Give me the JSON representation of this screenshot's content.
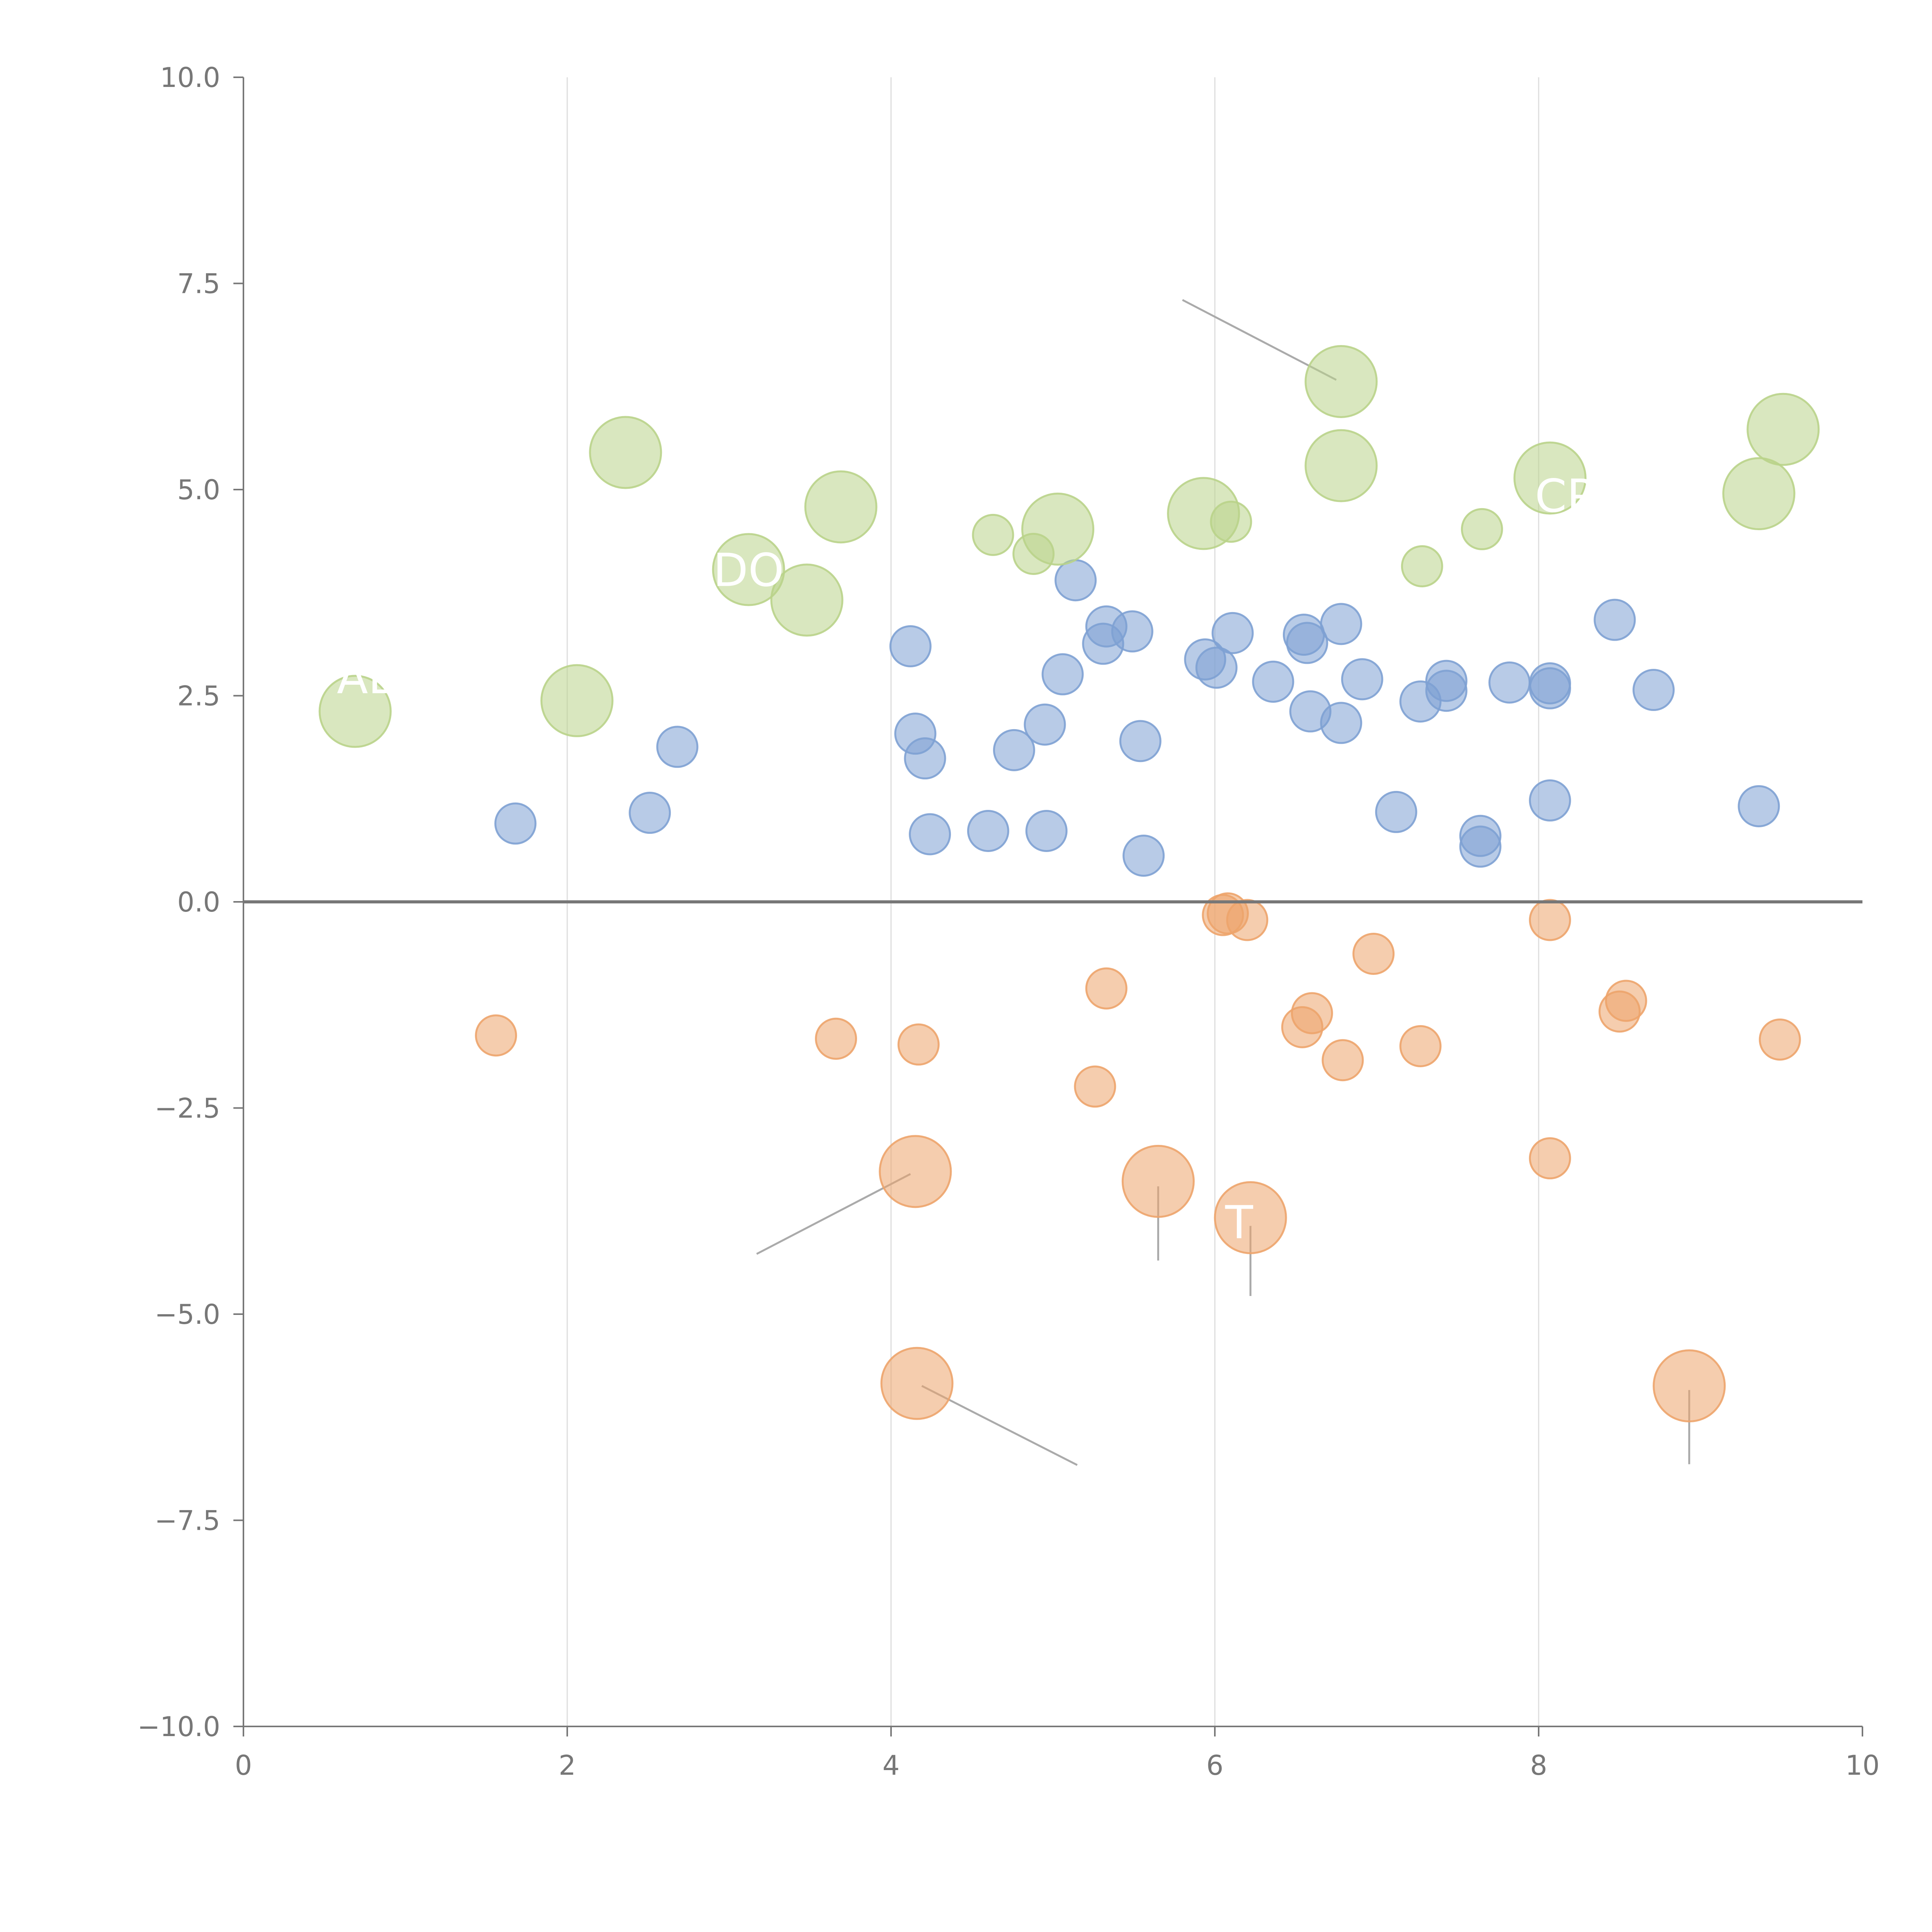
{
  "chart_data": {
    "type": "scatter",
    "title": "",
    "xlabel": "",
    "ylabel": "",
    "xlim": [
      0,
      10
    ],
    "ylim": [
      -10,
      10
    ],
    "x_ticks": [
      "0",
      "2",
      "4",
      "6",
      "8",
      "10"
    ],
    "y_ticks": [
      "−10.0",
      "−7.5",
      "−5.0",
      "−2.5",
      "0.0",
      "2.5",
      "5.0",
      "7.5",
      "10.0"
    ],
    "grid": "vertical",
    "zero_line": true,
    "colors": {
      "blue": "#7ea1d3",
      "orange": "#eda46b",
      "green": "#b9d38a",
      "leader": "#aaaaaa",
      "axis": "#777777",
      "grid": "#dddddd"
    },
    "series": [
      {
        "name": "blue",
        "color": "#7ea1d3",
        "points": [
          {
            "x": 1.68,
            "y": 0.95,
            "s": 1
          },
          {
            "x": 2.51,
            "y": 1.08,
            "s": 1
          },
          {
            "x": 2.68,
            "y": 1.88,
            "s": 1
          },
          {
            "x": 4.12,
            "y": 3.1,
            "s": 1
          },
          {
            "x": 4.15,
            "y": 2.04,
            "s": 1
          },
          {
            "x": 4.21,
            "y": 1.74,
            "s": 1
          },
          {
            "x": 4.24,
            "y": 0.82,
            "s": 1
          },
          {
            "x": 4.6,
            "y": 0.86,
            "s": 1
          },
          {
            "x": 4.76,
            "y": 1.84,
            "s": 1
          },
          {
            "x": 4.95,
            "y": 2.15,
            "s": 1
          },
          {
            "x": 4.96,
            "y": 0.86,
            "s": 1
          },
          {
            "x": 5.06,
            "y": 2.76,
            "s": 1
          },
          {
            "x": 5.14,
            "y": 3.9,
            "s": 1
          },
          {
            "x": 5.31,
            "y": 3.13,
            "s": 1
          },
          {
            "x": 5.33,
            "y": 3.34,
            "s": 1
          },
          {
            "x": 5.49,
            "y": 3.28,
            "s": 1
          },
          {
            "x": 5.54,
            "y": 1.95,
            "s": 1
          },
          {
            "x": 5.56,
            "y": 0.56,
            "s": 1
          },
          {
            "x": 5.94,
            "y": 2.94,
            "s": 1
          },
          {
            "x": 6.01,
            "y": 2.84,
            "s": 1
          },
          {
            "x": 6.11,
            "y": 3.26,
            "s": 1
          },
          {
            "x": 6.36,
            "y": 2.67,
            "s": 1
          },
          {
            "x": 6.55,
            "y": 3.24,
            "s": 1
          },
          {
            "x": 6.57,
            "y": 3.14,
            "s": 1
          },
          {
            "x": 6.59,
            "y": 2.31,
            "s": 1
          },
          {
            "x": 6.78,
            "y": 3.37,
            "s": 1
          },
          {
            "x": 6.78,
            "y": 2.17,
            "s": 1
          },
          {
            "x": 6.91,
            "y": 2.7,
            "s": 1
          },
          {
            "x": 7.12,
            "y": 1.09,
            "s": 1
          },
          {
            "x": 7.27,
            "y": 2.43,
            "s": 1
          },
          {
            "x": 7.43,
            "y": 2.68,
            "s": 1
          },
          {
            "x": 7.43,
            "y": 2.56,
            "s": 1
          },
          {
            "x": 7.64,
            "y": 0.8,
            "s": 1
          },
          {
            "x": 7.64,
            "y": 0.67,
            "s": 1
          },
          {
            "x": 7.82,
            "y": 2.66,
            "s": 1
          },
          {
            "x": 8.07,
            "y": 2.65,
            "s": 1
          },
          {
            "x": 8.07,
            "y": 2.59,
            "s": 1
          },
          {
            "x": 8.07,
            "y": 1.23,
            "s": 1
          },
          {
            "x": 8.47,
            "y": 3.42,
            "s": 1
          },
          {
            "x": 8.71,
            "y": 2.57,
            "s": 1
          },
          {
            "x": 9.36,
            "y": 1.16,
            "s": 1
          }
        ]
      },
      {
        "name": "orange",
        "color": "#eda46b",
        "points": [
          {
            "x": 1.56,
            "y": -1.62,
            "s": 1
          },
          {
            "x": 3.66,
            "y": -1.66,
            "s": 1
          },
          {
            "x": 4.17,
            "y": -1.73,
            "s": 1
          },
          {
            "x": 5.26,
            "y": -2.24,
            "s": 1
          },
          {
            "x": 5.33,
            "y": -1.05,
            "s": 1
          },
          {
            "x": 6.05,
            "y": -0.16,
            "s": 1
          },
          {
            "x": 6.08,
            "y": -0.14,
            "s": 1
          },
          {
            "x": 6.2,
            "y": -0.22,
            "s": 1
          },
          {
            "x": 6.54,
            "y": -1.52,
            "s": 1
          },
          {
            "x": 6.6,
            "y": -1.35,
            "s": 1
          },
          {
            "x": 6.79,
            "y": -1.92,
            "s": 1
          },
          {
            "x": 6.98,
            "y": -0.63,
            "s": 1
          },
          {
            "x": 7.27,
            "y": -1.75,
            "s": 1
          },
          {
            "x": 8.07,
            "y": -0.22,
            "s": 1
          },
          {
            "x": 8.07,
            "y": -3.11,
            "s": 1
          },
          {
            "x": 8.5,
            "y": -1.33,
            "s": 1
          },
          {
            "x": 8.54,
            "y": -1.2,
            "s": 1
          },
          {
            "x": 9.49,
            "y": -1.67,
            "s": 1
          },
          {
            "x": 4.15,
            "y": -3.27,
            "s": 2
          },
          {
            "x": 5.65,
            "y": -3.39,
            "s": 2
          },
          {
            "x": 6.22,
            "y": -3.83,
            "s": 2
          },
          {
            "x": 4.16,
            "y": -5.84,
            "s": 2
          },
          {
            "x": 8.93,
            "y": -5.87,
            "s": 2
          }
        ]
      },
      {
        "name": "green",
        "color": "#b9d38a",
        "points": [
          {
            "x": 4.63,
            "y": 4.45,
            "s": 1
          },
          {
            "x": 4.88,
            "y": 4.22,
            "s": 1
          },
          {
            "x": 6.1,
            "y": 4.61,
            "s": 1
          },
          {
            "x": 7.28,
            "y": 4.07,
            "s": 1
          },
          {
            "x": 7.65,
            "y": 4.52,
            "s": 1
          },
          {
            "x": 0.69,
            "y": 2.31,
            "s": 2
          },
          {
            "x": 2.06,
            "y": 2.44,
            "s": 2
          },
          {
            "x": 2.36,
            "y": 5.45,
            "s": 2
          },
          {
            "x": 3.12,
            "y": 4.03,
            "s": 2
          },
          {
            "x": 3.48,
            "y": 3.66,
            "s": 2
          },
          {
            "x": 3.69,
            "y": 4.79,
            "s": 2
          },
          {
            "x": 5.03,
            "y": 4.52,
            "s": 2
          },
          {
            "x": 5.93,
            "y": 4.71,
            "s": 2
          },
          {
            "x": 6.78,
            "y": 6.31,
            "s": 2
          },
          {
            "x": 6.78,
            "y": 5.29,
            "s": 2
          },
          {
            "x": 8.07,
            "y": 5.14,
            "s": 2
          },
          {
            "x": 9.36,
            "y": 4.95,
            "s": 2
          },
          {
            "x": 9.51,
            "y": 5.73,
            "s": 2
          }
        ]
      }
    ],
    "leader_lines": [
      {
        "x1": 6.75,
        "y1": 6.33,
        "x2": 5.8,
        "y2": 7.3
      },
      {
        "x1": 4.12,
        "y1": -3.3,
        "x2": 3.17,
        "y2": -4.27
      },
      {
        "x1": 5.65,
        "y1": -3.45,
        "x2": 5.65,
        "y2": -4.35
      },
      {
        "x1": 6.22,
        "y1": -3.93,
        "x2": 6.22,
        "y2": -4.78
      },
      {
        "x1": 4.19,
        "y1": -5.87,
        "x2": 5.15,
        "y2": -6.83
      },
      {
        "x1": 8.93,
        "y1": -5.92,
        "x2": 8.93,
        "y2": -6.82
      }
    ],
    "annotations": [
      {
        "text": "DO",
        "x": 3.12,
        "y": 3.83,
        "color": "#ffffff"
      },
      {
        "text": "AB",
        "x": 0.77,
        "y": 2.53,
        "color": "#ffffff"
      },
      {
        "text": "CP",
        "x": 8.16,
        "y": 4.73,
        "color": "#ffffff"
      },
      {
        "text": "T",
        "x": 6.15,
        "y": -4.08,
        "color": "#ffffff"
      }
    ]
  }
}
